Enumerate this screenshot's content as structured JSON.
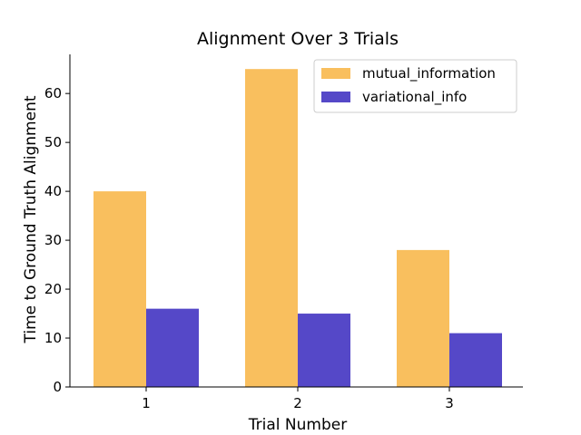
{
  "chart_data": {
    "type": "bar",
    "title": "Alignment Over 3 Trials",
    "xlabel": "Trial Number",
    "ylabel": "Time to Ground Truth Alignment",
    "categories": [
      "1",
      "2",
      "3"
    ],
    "series": [
      {
        "name": "mutual_information",
        "values": [
          40,
          65,
          28
        ],
        "color": "#f9bf5e"
      },
      {
        "name": "variational_info",
        "values": [
          16,
          15,
          11
        ],
        "color": "#5548c8"
      }
    ],
    "ylim": [
      0,
      68
    ],
    "yticks": [
      0,
      10,
      20,
      30,
      40,
      50,
      60
    ],
    "grid": false,
    "legend": "top-right"
  }
}
